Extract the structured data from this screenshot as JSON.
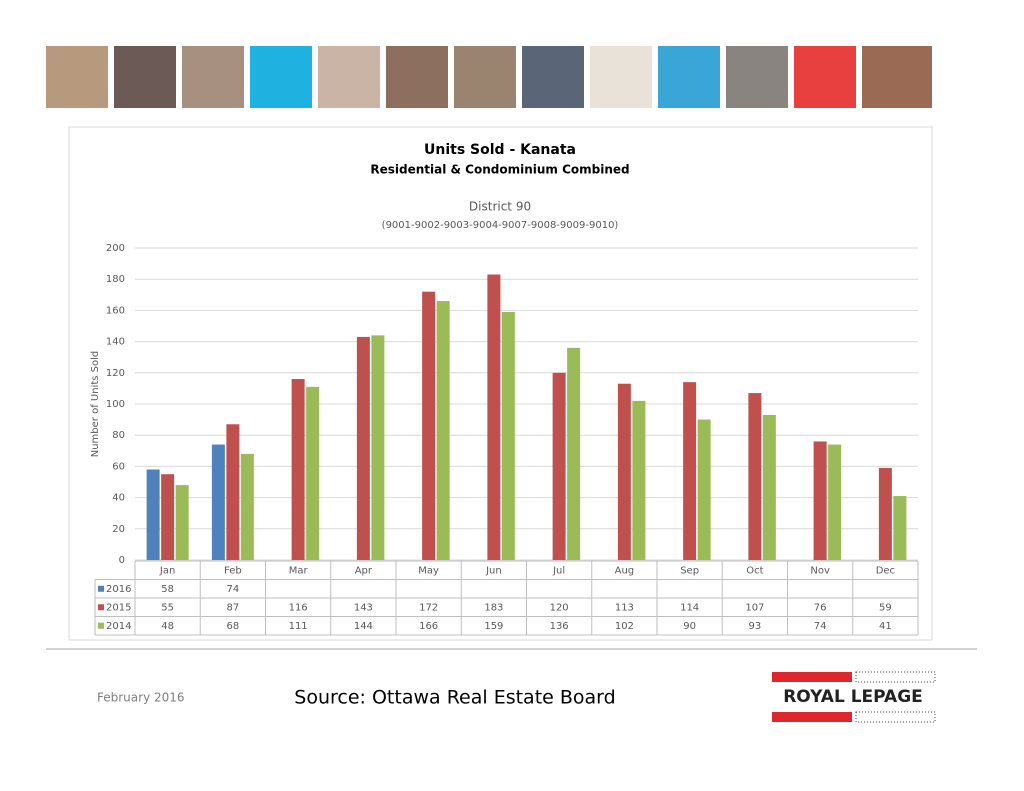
{
  "chart_data": {
    "type": "bar",
    "title": "Units Sold - Kanata",
    "subtitle": "Residential & Condominium Combined",
    "district": "District 90",
    "district_codes": "(9001-9002-9003-9004-9007-9008-9009-9010)",
    "y_label": "Number of Units Sold",
    "categories": [
      "Jan",
      "Feb",
      "Mar",
      "Apr",
      "May",
      "Jun",
      "Jul",
      "Aug",
      "Sep",
      "Oct",
      "Nov",
      "Dec"
    ],
    "series": [
      {
        "name": "2016",
        "color": "#4f81bd",
        "values": [
          58,
          74,
          null,
          null,
          null,
          null,
          null,
          null,
          null,
          null,
          null,
          null
        ]
      },
      {
        "name": "2015",
        "color": "#c0504d",
        "values": [
          55,
          87,
          116,
          143,
          172,
          183,
          120,
          113,
          114,
          107,
          76,
          59
        ]
      },
      {
        "name": "2014",
        "color": "#9bbb59",
        "values": [
          48,
          68,
          111,
          144,
          166,
          159,
          136,
          102,
          90,
          93,
          74,
          41
        ]
      }
    ],
    "ylim": [
      0,
      200
    ],
    "yticks": [
      0,
      20,
      40,
      60,
      80,
      100,
      120,
      140,
      160,
      180,
      200
    ],
    "grid": true
  },
  "footer": {
    "date": "February 2016",
    "source": "Source: Ottawa Real Estate Board",
    "logo": "ROYAL LEPAGE"
  }
}
